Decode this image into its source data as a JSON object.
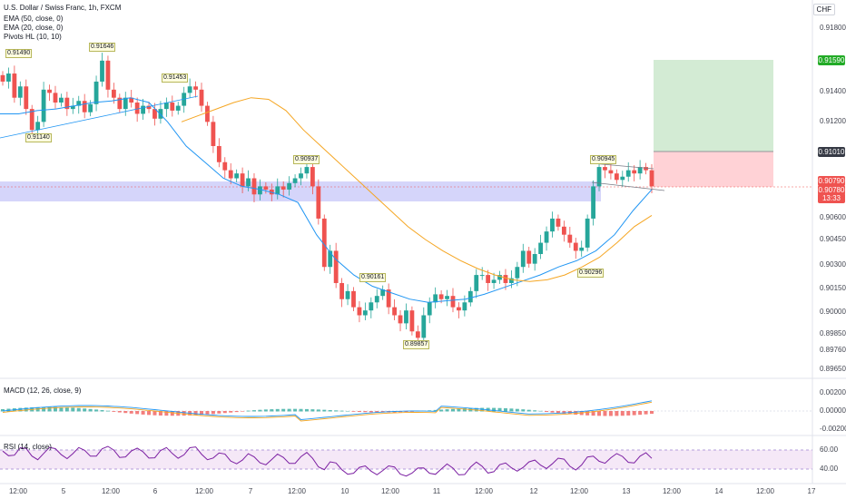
{
  "title": "U.S. Dollar / Swiss Franc, 1h, FXCM",
  "indicators": [
    "EMA (50, close, 0)",
    "EMA (20, close, 0)",
    "Pivots HL (10, 10)"
  ],
  "currency": "CHF",
  "macd_label": "MACD (12, 26, close, 9)",
  "rsi_label": "RSI (14, close)",
  "colors": {
    "up": "#26a69a",
    "down": "#ef5350",
    "ema20": "#2196f3",
    "ema50": "#f5a623",
    "zone": "#b3b3f5",
    "target": "#c8e6c9",
    "stop": "#ffcdd2",
    "rsi": "#7b1fa2"
  },
  "chart_data": {
    "type": "candlestick",
    "symbol": "USDCHF",
    "timeframe": "1h",
    "y_axis": {
      "ticks": [
        "0.91800",
        "0.91590",
        "0.91400",
        "0.91200",
        "0.91010",
        "0.90790",
        "0.90600",
        "0.90450",
        "0.90300",
        "0.90150",
        "0.90000",
        "0.89850",
        "0.89760",
        "0.89650"
      ],
      "range": [
        0.8962,
        0.919
      ]
    },
    "price_tags": {
      "target": "0.91590",
      "entry": "0.91010",
      "last": "0.90790",
      "last2": "0.90780",
      "countdown": "13:33"
    },
    "x_axis_ticks": [
      "12:00",
      "5",
      "12:00",
      "6",
      "12:00",
      "7",
      "12:00",
      "10",
      "12:00",
      "11",
      "12:00",
      "12",
      "12:00",
      "13",
      "12:00",
      "14",
      "12:00",
      "17"
    ],
    "pivots": [
      {
        "label": "0.91490",
        "type": "high"
      },
      {
        "label": "0.91646",
        "type": "high"
      },
      {
        "label": "0.91453",
        "type": "high"
      },
      {
        "label": "0.91140",
        "type": "low"
      },
      {
        "label": "0.90937",
        "type": "high"
      },
      {
        "label": "0.90161",
        "type": "high"
      },
      {
        "label": "0.89857",
        "type": "low"
      },
      {
        "label": "0.90945",
        "type": "high"
      },
      {
        "label": "0.90296",
        "type": "low"
      }
    ],
    "close_path": [
      0.9145,
      0.915,
      0.9135,
      0.9142,
      0.9128,
      0.9115,
      0.912,
      0.914,
      0.9138,
      0.9132,
      0.9135,
      0.9128,
      0.913,
      0.9133,
      0.9126,
      0.9131,
      0.9145,
      0.9158,
      0.914,
      0.9135,
      0.9128,
      0.9135,
      0.9132,
      0.9125,
      0.913,
      0.9128,
      0.9122,
      0.9128,
      0.9132,
      0.9127,
      0.913,
      0.9138,
      0.9142,
      0.914,
      0.913,
      0.912,
      0.9105,
      0.9095,
      0.909,
      0.9085,
      0.9088,
      0.908,
      0.9085,
      0.9075,
      0.908,
      0.9078,
      0.9075,
      0.908,
      0.9078,
      0.9082,
      0.9085,
      0.9088,
      0.9092,
      0.908,
      0.906,
      0.903,
      0.904,
      0.902,
      0.901,
      0.9015,
      0.9005,
      0.9,
      0.9003,
      0.9008,
      0.9012,
      0.9016,
      0.9005,
      0.9,
      0.8995,
      0.9003,
      0.899,
      0.8986,
      0.9,
      0.9008,
      0.9013,
      0.901,
      0.9012,
      0.9005,
      0.9003,
      0.9008,
      0.9015,
      0.9025,
      0.9025,
      0.902,
      0.9022,
      0.9025,
      0.902,
      0.9023,
      0.903,
      0.904,
      0.9032,
      0.9038,
      0.9045,
      0.9052,
      0.906,
      0.9055,
      0.905,
      0.9045,
      0.904,
      0.9042,
      0.906,
      0.908,
      0.9092,
      0.909,
      0.9088,
      0.9084,
      0.9086,
      0.909,
      0.9088,
      0.9092,
      0.909,
      0.908
    ],
    "ema20": [
      0.9125,
      0.9125,
      0.9127,
      0.9128,
      0.913,
      0.9132,
      0.9133,
      0.9135,
      0.9132,
      0.912,
      0.9105,
      0.9095,
      0.9085,
      0.908,
      0.9078,
      0.9075,
      0.907,
      0.905,
      0.9035,
      0.9025,
      0.9018,
      0.9014,
      0.901,
      0.9008,
      0.9009,
      0.901,
      0.9013,
      0.9017,
      0.9021,
      0.9025,
      0.903,
      0.9034,
      0.904,
      0.905,
      0.9065,
      0.9078
    ],
    "ema50": [
      0.912,
      0.9124,
      0.9128,
      0.9132,
      0.9135,
      0.9134,
      0.9127,
      0.9115,
      0.9105,
      0.9095,
      0.9085,
      0.9075,
      0.9065,
      0.9055,
      0.9047,
      0.904,
      0.9034,
      0.9029,
      0.9025,
      0.9022,
      0.9021,
      0.9022,
      0.9025,
      0.903,
      0.9036,
      0.9045,
      0.9055,
      0.9062
    ],
    "support_zone": [
      0.9072,
      0.9082
    ],
    "long_position": {
      "entry": 0.9101,
      "target": 0.9159,
      "stop": 0.9079
    },
    "macd": {
      "ticks": [
        "0.00200",
        "0.00000",
        "-0.00200"
      ],
      "range": [
        -0.0028,
        0.0028
      ]
    },
    "rsi": {
      "ticks": [
        "60.00",
        "40.00"
      ],
      "band": [
        40,
        60
      ]
    }
  }
}
